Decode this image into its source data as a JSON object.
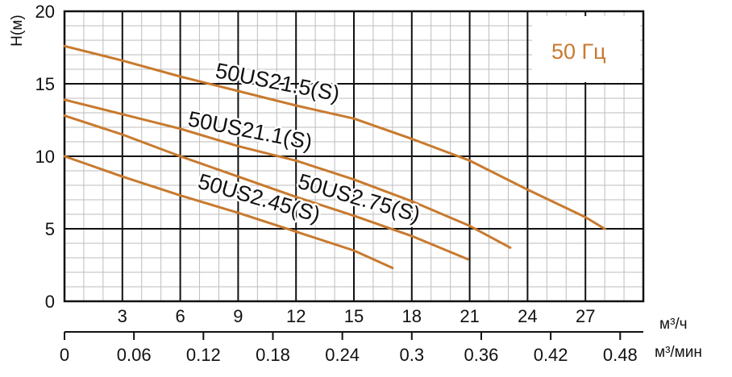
{
  "chart_data": {
    "type": "line",
    "ylabel": "H(м)",
    "xlabel_primary": "м³/ч",
    "xlabel_secondary": "м³/мин",
    "frequency_label": "50 Гц",
    "xlim": [
      0,
      30
    ],
    "ylim": [
      0,
      20
    ],
    "x_ticks_primary": [
      3,
      6,
      9,
      12,
      15,
      18,
      21,
      24,
      27
    ],
    "x_ticks_secondary": [
      "0",
      "0.06",
      "0.12",
      "0.18",
      "0.24",
      "0.3",
      "0.36",
      "0.42",
      "0.48"
    ],
    "x_ticks_secondary_values": [
      0,
      3.6,
      7.2,
      10.8,
      14.4,
      18,
      21.6,
      25.2,
      28.8
    ],
    "y_ticks": [
      0,
      5,
      10,
      15,
      20
    ],
    "grid": true,
    "line_color": "#c87a2e",
    "series": [
      {
        "name": "50US21.5(S)",
        "x": [
          0,
          3,
          6,
          9,
          12,
          15,
          18,
          21,
          24,
          27,
          28
        ],
        "y": [
          17.6,
          16.6,
          15.5,
          14.5,
          13.5,
          12.6,
          11.2,
          9.7,
          7.7,
          5.8,
          5.0
        ]
      },
      {
        "name": "50US21.1(S)",
        "x": [
          0,
          3,
          6,
          9,
          12,
          15,
          18,
          21,
          23.1
        ],
        "y": [
          13.9,
          12.9,
          11.9,
          10.7,
          9.7,
          8.4,
          6.9,
          5.2,
          3.7
        ]
      },
      {
        "name": "50US2.75(S)",
        "x": [
          0,
          3,
          6,
          9,
          12,
          15,
          18,
          20.9
        ],
        "y": [
          12.8,
          11.5,
          10.0,
          8.6,
          7.2,
          5.9,
          4.5,
          2.9
        ]
      },
      {
        "name": "50US2.45(S)",
        "x": [
          0,
          3,
          6,
          9,
          12,
          15,
          17
        ],
        "y": [
          10.0,
          8.6,
          7.3,
          6.1,
          4.8,
          3.5,
          2.3
        ]
      }
    ]
  }
}
